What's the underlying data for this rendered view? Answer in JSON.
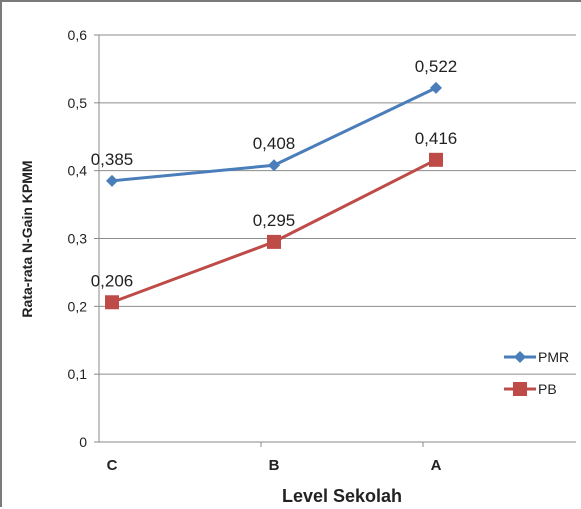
{
  "chart_data": {
    "type": "line",
    "categories": [
      "C",
      "B",
      "A"
    ],
    "series": [
      {
        "name": "PMR",
        "values": [
          0.385,
          0.408,
          0.522
        ],
        "labels": [
          "0,385",
          "0,408",
          "0,522"
        ],
        "color": "#4a7ebb",
        "marker": "diamond"
      },
      {
        "name": "PB",
        "values": [
          0.206,
          0.295,
          0.416
        ],
        "labels": [
          "0,206",
          "0,295",
          "0,416"
        ],
        "color": "#be4b48",
        "marker": "square"
      }
    ],
    "xlabel": "Level Sekolah",
    "ylabel": "Rata-rata N-Gain KPMM",
    "ylim": [
      0,
      0.6
    ],
    "yticks": [
      0,
      0.1,
      0.2,
      0.3,
      0.4,
      0.5,
      0.6
    ],
    "ytick_labels": [
      "0",
      "0,1",
      "0,2",
      "0,3",
      "0,4",
      "0,5",
      "0,6"
    ],
    "grid": true,
    "legend_position": "right"
  }
}
